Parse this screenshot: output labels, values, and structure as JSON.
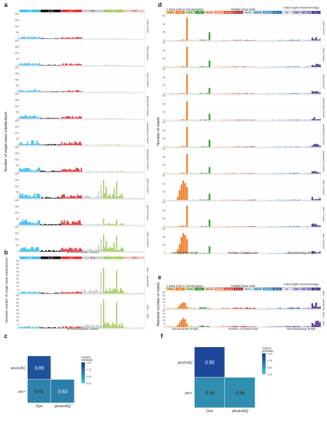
{
  "panel_labels": {
    "a": "a",
    "b": "b",
    "c": "c",
    "d": "d",
    "e": "e",
    "f": "f"
  },
  "colors": {
    "sbs": [
      "#38bdf0",
      "#000000",
      "#e22b2b",
      "#c9c9c9",
      "#a2cd5a",
      "#eec6c4"
    ],
    "id_1bp": [
      "#f4bf6e",
      "#ef8230",
      "#b1d99c",
      "#3a9e3a"
    ],
    "id_multi": [
      "#fbcab5",
      "#f58e6f",
      "#e2452f",
      "#ae1c1c",
      "#d0e1f1",
      "#95c5e0",
      "#4b98c8",
      "#1c64a9"
    ],
    "id_mh": [
      "#e0e0f0",
      "#b2aed3",
      "#8580bb",
      "#5a3b95"
    ],
    "heat_low": "#3ec1c0",
    "heat_high": "#1b3f96"
  },
  "sbs_axis": {
    "ylabel": "Number of single base substitutions",
    "xlabel": "96-trinucleotide context",
    "mut_types": [
      "C>A",
      "C>G",
      "C>T",
      "T>A",
      "T>C",
      "T>G"
    ],
    "yticks_text": [
      "0",
      "50",
      "100",
      "150",
      "200"
    ]
  },
  "sbs_b_axis": {
    "ylabel": "Absolute number of single base substitutions",
    "xlabel": "96-trinucleotide context",
    "yticks_text": [
      "0",
      "5",
      "10",
      "15",
      "20",
      "25",
      "30",
      "35",
      "40",
      "45"
    ]
  },
  "id_axis": {
    "ylabel": "Number of indels",
    "header_top": [
      "1 base indel in homopolymer",
      "Multiple-base indel",
      "Indel length microhomology"
    ],
    "cats": [
      "C del",
      "T del",
      "C ins",
      "T ins",
      "2bp del",
      "3bp del",
      "4bp del",
      "5bp del",
      "2bp ins",
      "3bp ins",
      "4bp ins",
      "5bp ins",
      "2bp",
      "3bp",
      "4bp",
      "5+"
    ],
    "xlabels": [
      "Homopolymer length",
      "Number of repeat units",
      "Microhomology length"
    ],
    "yticks_text": [
      "0",
      "20",
      "40",
      "60"
    ]
  },
  "id_b_axis": {
    "ylabel": "Absolute number of indels",
    "yticks_text": [
      "0",
      "5",
      "10",
      "15",
      "20",
      "25"
    ]
  },
  "rows_a": [
    "Dye-Clone1",
    "Dye-Clone2",
    "Dye-Clone3",
    "pksΔclbQ-Clone1",
    "pksΔclbQ-Clone2",
    "pksΔclbQ-Clone3",
    "pks+-Clone1",
    "pks+-Clone2",
    "pks+-Clone3"
  ],
  "rows_b": [
    "pks+ – pksΔclbQ",
    "pks+ – Dye"
  ],
  "chart_data": [
    {
      "type": "bar",
      "panel": "a",
      "title": "",
      "xlabel": "96-trinucleotide context",
      "ylabel": "Number of single base substitutions",
      "ylim": [
        0,
        200
      ],
      "categories": [
        "C>A",
        "C>G",
        "C>T",
        "T>A",
        "T>C",
        "T>G"
      ],
      "series": [
        {
          "name": "Dye-Clone1",
          "group_heights": [
            12,
            4,
            10,
            2,
            2,
            1
          ],
          "peaks": []
        },
        {
          "name": "Dye-Clone2",
          "group_heights": [
            15,
            4,
            12,
            2,
            3,
            1
          ],
          "peaks": []
        },
        {
          "name": "Dye-Clone3",
          "group_heights": [
            14,
            3,
            11,
            2,
            2,
            1
          ],
          "peaks": []
        },
        {
          "name": "pksΔclbQ-Clone1",
          "group_heights": [
            20,
            5,
            16,
            3,
            3,
            1
          ],
          "peaks": []
        },
        {
          "name": "pksΔclbQ-Clone2",
          "group_heights": [
            28,
            7,
            22,
            4,
            4,
            2
          ],
          "peaks": []
        },
        {
          "name": "pksΔclbQ-Clone3",
          "group_heights": [
            30,
            8,
            24,
            4,
            5,
            2
          ],
          "peaks": []
        },
        {
          "name": "pks+-Clone1",
          "group_heights": [
            30,
            10,
            25,
            18,
            30,
            4
          ],
          "peaks": [
            [
              62,
              110
            ],
            [
              64,
              150
            ],
            [
              66,
              95
            ],
            [
              60,
              60
            ],
            [
              72,
              80
            ],
            [
              74,
              140
            ]
          ]
        },
        {
          "name": "pks+-Clone2",
          "group_heights": [
            34,
            8,
            28,
            8,
            10,
            3
          ],
          "peaks": [
            [
              64,
              55
            ],
            [
              74,
              45
            ]
          ]
        },
        {
          "name": "pks+-Clone3",
          "group_heights": [
            30,
            10,
            26,
            20,
            30,
            4
          ],
          "peaks": [
            [
              62,
              100
            ],
            [
              64,
              140
            ],
            [
              66,
              90
            ],
            [
              60,
              55
            ],
            [
              72,
              75
            ],
            [
              74,
              130
            ]
          ]
        }
      ]
    },
    {
      "type": "bar",
      "panel": "b",
      "title": "",
      "xlabel": "96-trinucleotide context",
      "ylabel": "Absolute number of single base substitutions",
      "ylim": [
        0,
        45
      ],
      "categories": [
        "C>A",
        "C>G",
        "C>T",
        "T>A",
        "T>C",
        "T>G"
      ],
      "series": [
        {
          "name": "pks+ – pksΔclbQ",
          "group_heights": [
            2,
            1,
            2,
            4,
            6,
            1
          ],
          "peaks": [
            [
              62,
              30
            ],
            [
              64,
              36
            ],
            [
              74,
              32
            ]
          ]
        },
        {
          "name": "pks+ – Dye",
          "group_heights": [
            2,
            1,
            2,
            4,
            6,
            1
          ],
          "peaks": [
            [
              62,
              34
            ],
            [
              64,
              40
            ],
            [
              74,
              36
            ]
          ]
        }
      ]
    },
    {
      "type": "heatmap",
      "panel": "c",
      "title": "",
      "rows": [
        "pksΔclbQ",
        "pks+"
      ],
      "cols": [
        "Dye",
        "pksΔclbQ"
      ],
      "values": [
        [
          0.89,
          null
        ],
        [
          0.61,
          0.63
        ]
      ],
      "value_text": [
        [
          "0.89",
          ""
        ],
        [
          "0.61",
          "0.63"
        ]
      ],
      "legend_title": "Cosine similarity",
      "legend_ticks": [
        "1.00",
        "0.75",
        "0.50",
        "0.25"
      ]
    },
    {
      "type": "bar",
      "panel": "d",
      "title": "",
      "ylabel": "Number of indels",
      "ylim": [
        0,
        75
      ],
      "categories": [
        "C del",
        "T del",
        "C ins",
        "T ins",
        "2bp del",
        "3bp del",
        "4bp del",
        "5bp del",
        "2bp ins",
        "3bp ins",
        "4bp ins",
        "5bp ins",
        "2bp",
        "3bp",
        "4bp",
        "5+"
      ],
      "series": [
        {
          "name": "Dye-Clone1",
          "values_T_del": [
            1,
            1,
            2,
            3,
            2,
            70
          ],
          "T_ins": 25
        },
        {
          "name": "Dye-Clone2",
          "values_T_del": [
            1,
            1,
            2,
            3,
            2,
            62
          ],
          "T_ins": 20
        },
        {
          "name": "Dye-Clone3",
          "values_T_del": [
            1,
            1,
            2,
            2,
            2,
            60
          ],
          "T_ins": 18
        },
        {
          "name": "pksΔclbQ-Clone1",
          "values_T_del": [
            1,
            1,
            2,
            3,
            2,
            58
          ],
          "T_ins": 20
        },
        {
          "name": "pksΔclbQ-Clone2",
          "values_T_del": [
            1,
            1,
            2,
            3,
            3,
            62
          ],
          "T_ins": 22
        },
        {
          "name": "pksΔclbQ-Clone3",
          "values_T_del": [
            1,
            1,
            2,
            3,
            2,
            60
          ],
          "T_ins": 20
        },
        {
          "name": "pks+-Clone1",
          "values_T_del": [
            10,
            30,
            48,
            60,
            52,
            40
          ],
          "T_ins": 20
        },
        {
          "name": "pks+-Clone2",
          "values_T_del": [
            2,
            2,
            3,
            4,
            3,
            65
          ],
          "T_ins": 22
        },
        {
          "name": "pks+-Clone3",
          "values_T_del": [
            12,
            28,
            50,
            62,
            56,
            44
          ],
          "T_ins": 22
        }
      ]
    },
    {
      "type": "bar",
      "panel": "e",
      "title": "",
      "ylabel": "Absolute number of indels",
      "ylim": [
        0,
        25
      ],
      "categories": [
        "C del",
        "T del",
        "C ins",
        "T ins",
        "2bp del",
        "3bp del",
        "4bp del",
        "5bp del",
        "2bp ins",
        "3bp ins",
        "4bp ins",
        "5bp ins",
        "2bp",
        "3bp",
        "4bp",
        "5+"
      ],
      "series": [
        {
          "name": "pks+ – pksΔclbQ",
          "values_T_del": [
            2,
            5,
            8,
            10,
            9,
            3
          ],
          "T_ins": 1
        },
        {
          "name": "pks+ – Dye",
          "values_T_del": [
            3,
            7,
            11,
            14,
            12,
            5
          ],
          "T_ins": 1
        }
      ]
    },
    {
      "type": "heatmap",
      "panel": "f",
      "title": "",
      "rows": [
        "pksΔclbQ",
        "pks+"
      ],
      "cols": [
        "Dye",
        "pksΔclbQ"
      ],
      "values": [
        [
          0.95,
          null
        ],
        [
          0.54,
          0.54
        ]
      ],
      "value_text": [
        [
          "0.95",
          ""
        ],
        [
          "0.54",
          "0.54"
        ]
      ],
      "legend_title": "Cosine similarity",
      "legend_ticks": [
        "1.00",
        "0.75",
        "0.50",
        "0.25"
      ]
    }
  ]
}
